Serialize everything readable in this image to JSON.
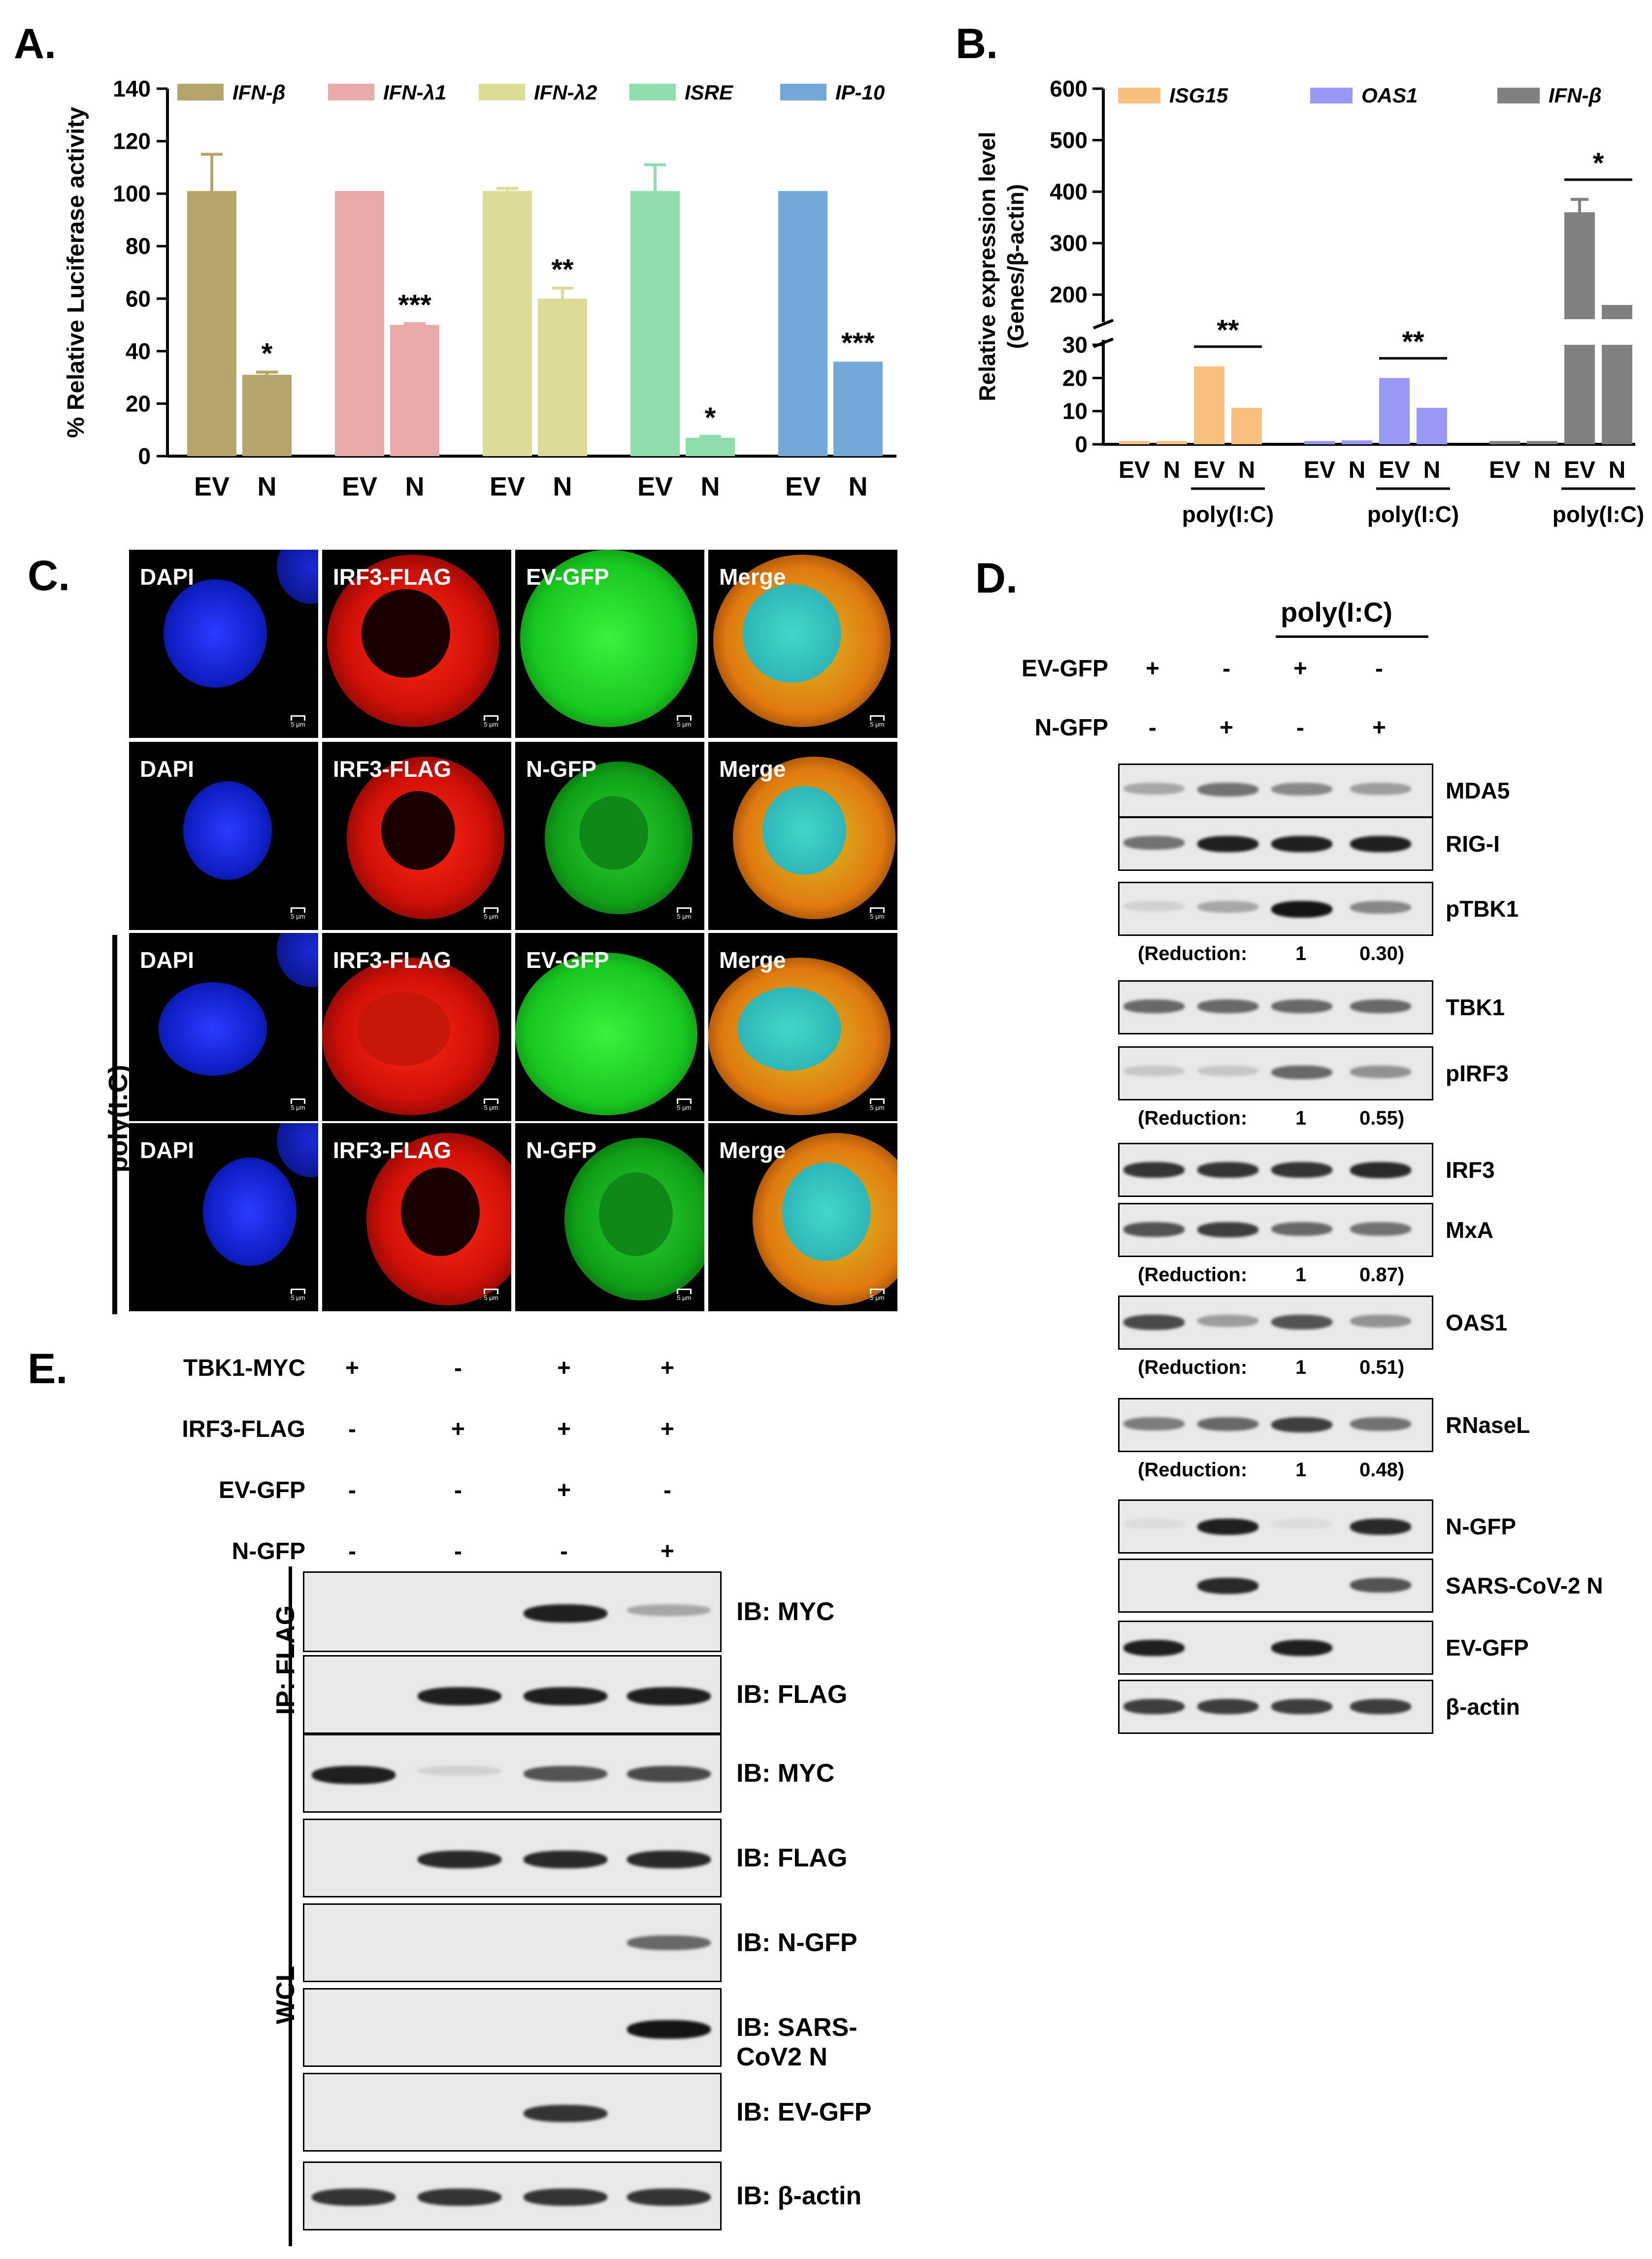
{
  "panels": {
    "A": {
      "label": "A."
    },
    "B": {
      "label": "B."
    },
    "C": {
      "label": "C."
    },
    "D": {
      "label": "D."
    },
    "E": {
      "label": "E."
    }
  },
  "chart_data": [
    {
      "panel": "A",
      "type": "bar",
      "ylabel": "% Relative Luciferase activity",
      "ylim": [
        0,
        140
      ],
      "yticks": [
        0,
        20,
        40,
        60,
        80,
        100,
        120,
        140
      ],
      "legend": [
        "IFN-β",
        "IFN-λ1",
        "IFN-λ2",
        "ISRE",
        "IP-10"
      ],
      "legend_placement": "top",
      "groups": [
        {
          "name": "IFN-β",
          "color": "#b5a56c",
          "categories": [
            "EV",
            "N"
          ],
          "values": [
            101,
            31
          ],
          "errors": [
            14,
            1
          ],
          "significance": "*"
        },
        {
          "name": "IFN-λ1",
          "color": "#e8aaaa",
          "categories": [
            "EV",
            "N"
          ],
          "values": [
            101,
            50
          ],
          "errors": [
            0,
            0.5
          ],
          "significance": "***"
        },
        {
          "name": "IFN-λ2",
          "color": "#dcdc96",
          "categories": [
            "EV",
            "N"
          ],
          "values": [
            101,
            60
          ],
          "errors": [
            1,
            4
          ],
          "significance": "**"
        },
        {
          "name": "ISRE",
          "color": "#8fdcad",
          "categories": [
            "EV",
            "N"
          ],
          "values": [
            101,
            7
          ],
          "errors": [
            10,
            0.5
          ],
          "significance": "*"
        },
        {
          "name": "IP-10",
          "color": "#73a8d8",
          "categories": [
            "EV",
            "N"
          ],
          "values": [
            101,
            36
          ],
          "errors": [
            0,
            0
          ],
          "significance": "***"
        }
      ]
    },
    {
      "panel": "B",
      "type": "bar",
      "ylabel": "Relative expression level",
      "ylabel2": "(Genes/β-actin)",
      "axis_break": [
        30,
        160
      ],
      "ylim": [
        0,
        600
      ],
      "yticks_lower": [
        0,
        10,
        20,
        30
      ],
      "yticks_upper": [
        200,
        300,
        400,
        500,
        600
      ],
      "legend": [
        "ISG15",
        "OAS1",
        "IFN-β"
      ],
      "legend_placement": "top",
      "treatment_label": "poly(I:C)",
      "groups": [
        {
          "name": "ISG15",
          "color": "#f9bf7e",
          "categories": [
            "EV",
            "N",
            "EV",
            "N"
          ],
          "values": [
            1,
            1,
            23.5,
            11
          ],
          "significance": "**"
        },
        {
          "name": "OAS1",
          "color": "#9999f5",
          "categories": [
            "EV",
            "N",
            "EV",
            "N"
          ],
          "values": [
            1,
            1.2,
            20,
            11
          ],
          "significance": "**"
        },
        {
          "name": "IFN-β",
          "color": "#808080",
          "categories": [
            "EV",
            "N",
            "EV",
            "N"
          ],
          "values": [
            1,
            1,
            360,
            180
          ],
          "errors": [
            0,
            0,
            25,
            0
          ],
          "significance": "*"
        }
      ]
    }
  ],
  "panelC": {
    "side_label": "poly(I:C)",
    "rows": [
      {
        "cells": [
          "DAPI",
          "IRF3-FLAG",
          "EV-GFP",
          "Merge"
        ]
      },
      {
        "cells": [
          "DAPI",
          "IRF3-FLAG",
          "N-GFP",
          "Merge"
        ]
      },
      {
        "cells": [
          "DAPI",
          "IRF3-FLAG",
          "EV-GFP",
          "Merge"
        ]
      },
      {
        "cells": [
          "DAPI",
          "IRF3-FLAG",
          "N-GFP",
          "Merge"
        ]
      }
    ],
    "scale_label": "5 μm"
  },
  "panelD": {
    "treatment": "poly(I:C)",
    "rows": [
      {
        "label": "EV-GFP",
        "values": [
          "+",
          "-",
          "+",
          "-"
        ]
      },
      {
        "label": "N-GFP",
        "values": [
          "-",
          "+",
          "-",
          "+"
        ]
      }
    ],
    "blots": [
      {
        "name": "MDA5"
      },
      {
        "name": "RIG-I"
      },
      {
        "name": "pTBK1",
        "reduction": [
          "(Reduction:",
          "1",
          "0.30)"
        ]
      },
      {
        "name": "TBK1"
      },
      {
        "name": "pIRF3",
        "reduction": [
          "(Reduction:",
          "1",
          "0.55)"
        ]
      },
      {
        "name": "IRF3"
      },
      {
        "name": "MxA",
        "reduction": [
          "(Reduction:",
          "1",
          "0.87)"
        ]
      },
      {
        "name": "OAS1",
        "reduction": [
          "(Reduction:",
          "1",
          "0.51)"
        ]
      },
      {
        "name": "RNaseL",
        "reduction": [
          "(Reduction:",
          "1",
          "0.48)"
        ]
      },
      {
        "name": "N-GFP"
      },
      {
        "name": "SARS-CoV-2 N"
      },
      {
        "name": "EV-GFP"
      },
      {
        "name": "β-actin"
      }
    ]
  },
  "panelE": {
    "rows": [
      {
        "label": "TBK1-MYC",
        "values": [
          "+",
          "-",
          "+",
          "+"
        ]
      },
      {
        "label": "IRF3-FLAG",
        "values": [
          "-",
          "+",
          "+",
          "+"
        ]
      },
      {
        "label": "EV-GFP",
        "values": [
          "-",
          "-",
          "+",
          "-"
        ]
      },
      {
        "label": "N-GFP",
        "values": [
          "-",
          "-",
          "-",
          "+"
        ]
      }
    ],
    "ip_label": "IP: FLAG",
    "wcl_label": "WCL",
    "blots": [
      {
        "name": "IB: MYC"
      },
      {
        "name": "IB: FLAG"
      },
      {
        "name": "IB: MYC"
      },
      {
        "name": "IB: FLAG"
      },
      {
        "name": "IB: N-GFP"
      },
      {
        "name": "IB: SARS-CoV2 N"
      },
      {
        "name": "IB: EV-GFP"
      },
      {
        "name": "IB: β-actin"
      }
    ]
  }
}
